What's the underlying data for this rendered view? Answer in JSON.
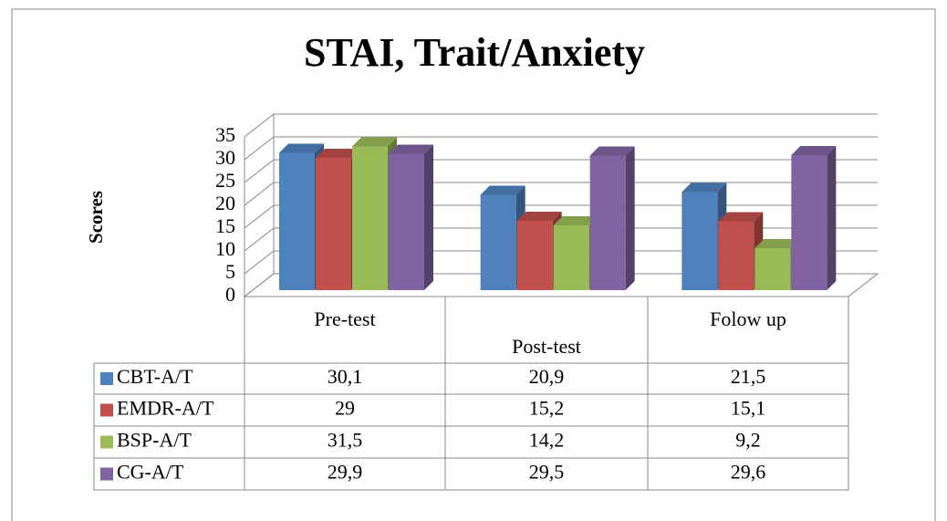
{
  "chart_data": {
    "type": "bar3d",
    "title": "STAI, Trait/Anxiety",
    "y_label": "Scores",
    "categories": [
      "Pre-test",
      "Post-test",
      "Folow up"
    ],
    "series": [
      {
        "name": "CBT-A/T",
        "color": "#4f81bd",
        "values": [
          30.1,
          20.9,
          21.5
        ],
        "value_labels": [
          "30,1",
          "20,9",
          "21,5"
        ]
      },
      {
        "name": "EMDR-A/T",
        "color": "#c0504d",
        "values": [
          29,
          15.2,
          15.1
        ],
        "value_labels": [
          "29",
          "15,2",
          "15,1"
        ]
      },
      {
        "name": "BSP-A/T",
        "color": "#9bbb59",
        "values": [
          31.5,
          14.2,
          9.2
        ],
        "value_labels": [
          "31,5",
          "14,2",
          "9,2"
        ]
      },
      {
        "name": "CG-A/T",
        "color": "#8064a2",
        "values": [
          29.9,
          29.5,
          29.6
        ],
        "value_labels": [
          "29,9",
          "29,5",
          "29,6"
        ]
      }
    ],
    "ylim": [
      0,
      35
    ],
    "yticks": [
      0,
      5,
      10,
      15,
      20,
      25,
      30,
      35
    ],
    "grid": true,
    "legend": "table"
  }
}
